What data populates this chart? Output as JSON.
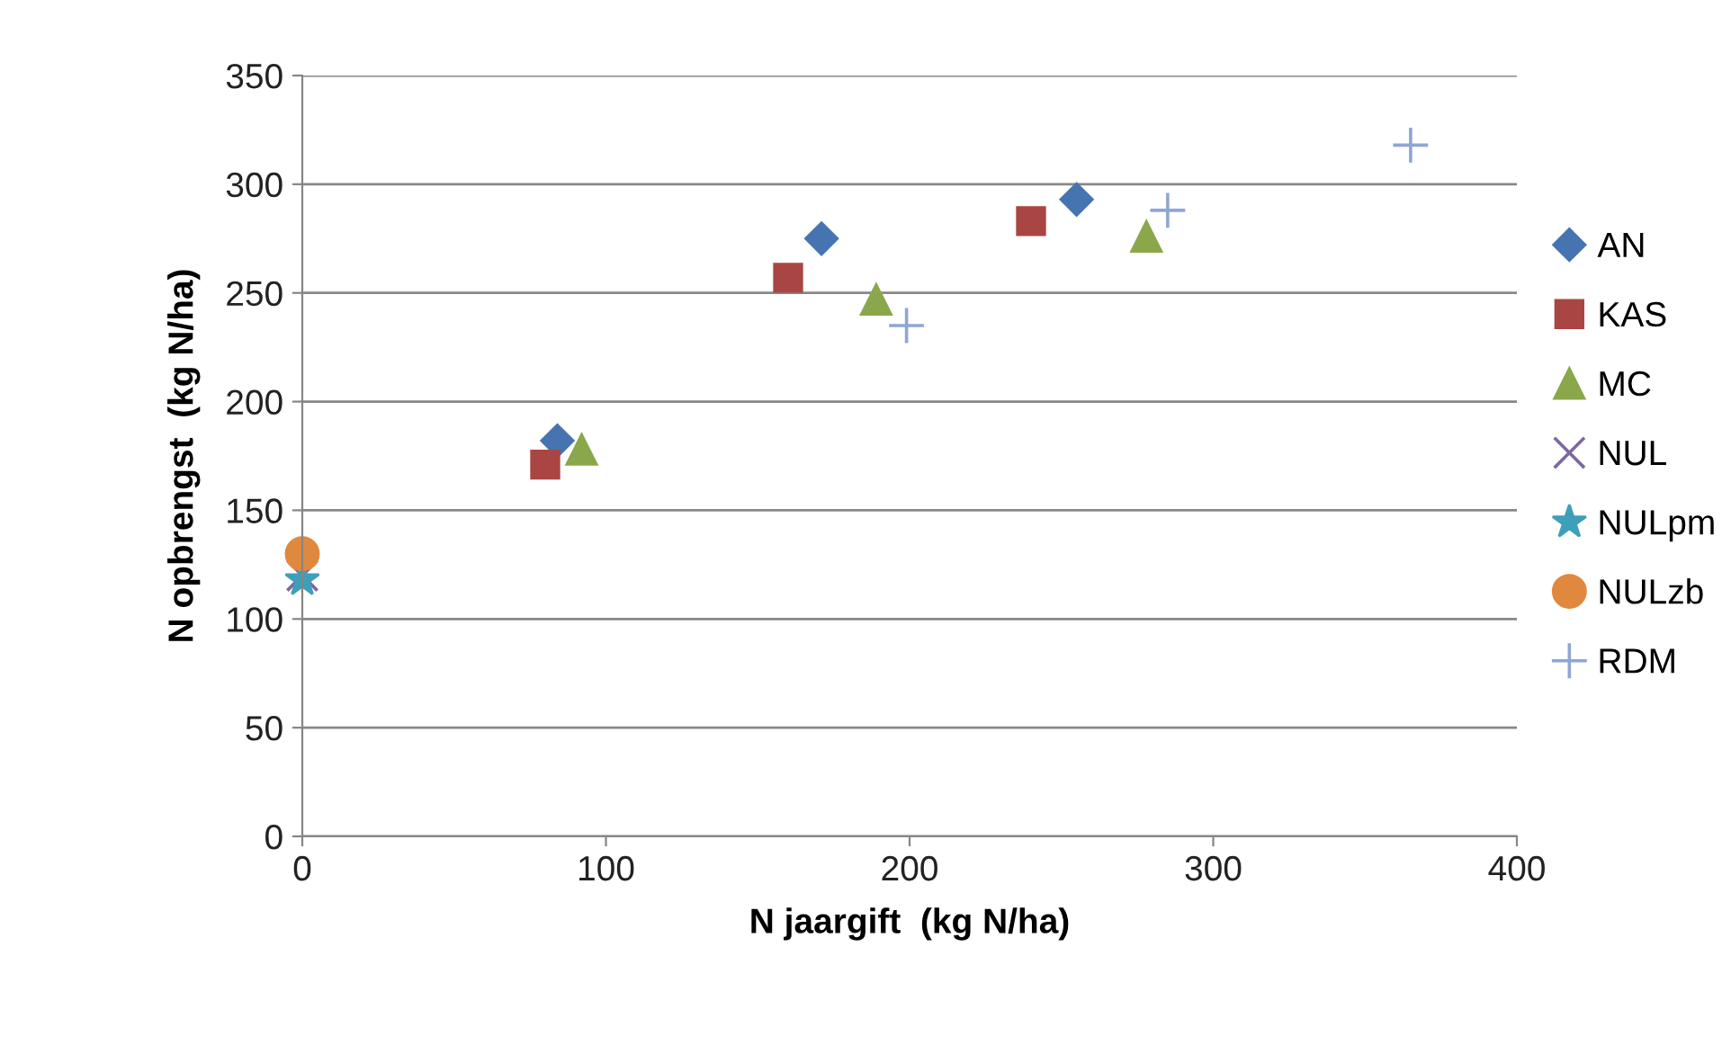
{
  "chart_data": {
    "type": "scatter",
    "xlabel": "N jaargift  (kg N/ha)",
    "ylabel": "N opbrengst  (kg N/ha)",
    "xlim": [
      0,
      400
    ],
    "xticks": [
      0,
      100,
      200,
      300,
      400
    ],
    "ylim": [
      0,
      350
    ],
    "yticks": [
      0,
      50,
      100,
      150,
      200,
      250,
      300,
      350
    ],
    "grid": "y",
    "legend": "right",
    "series": [
      {
        "name": "AN",
        "color": "#4674b0",
        "marker": "diamond",
        "x": [
          84,
          171,
          255
        ],
        "values": [
          182,
          275,
          293
        ]
      },
      {
        "name": "KAS",
        "color": "#a94643",
        "marker": "square",
        "x": [
          80,
          160,
          240
        ],
        "values": [
          171,
          257,
          283
        ]
      },
      {
        "name": "MC",
        "color": "#8aa84b",
        "marker": "triangle",
        "x": [
          92,
          189,
          278
        ],
        "values": [
          178,
          247,
          276
        ]
      },
      {
        "name": "NUL",
        "color": "#7e68a0",
        "marker": "cross",
        "x": [
          0
        ],
        "values": [
          120
        ]
      },
      {
        "name": "NULpm",
        "color": "#3e9fbb",
        "marker": "star",
        "x": [
          0
        ],
        "values": [
          118
        ]
      },
      {
        "name": "NULzb",
        "color": "#e0893e",
        "marker": "circle",
        "x": [
          0
        ],
        "values": [
          130
        ]
      },
      {
        "name": "RDM",
        "color": "#8fa6d4",
        "marker": "plus",
        "x": [
          199,
          285,
          365
        ],
        "values": [
          235,
          288,
          318
        ]
      }
    ]
  }
}
